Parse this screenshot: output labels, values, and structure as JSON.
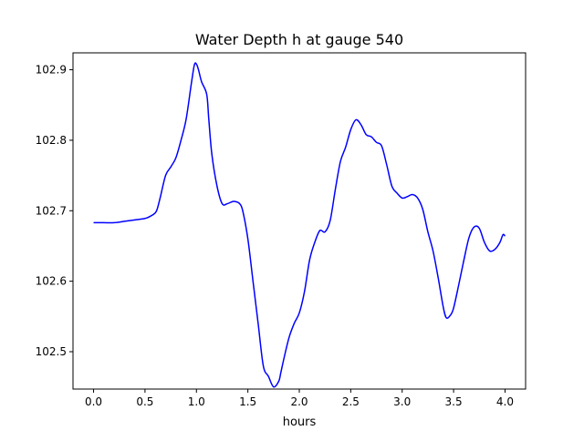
{
  "chart_data": {
    "type": "line",
    "title": "Water Depth h at gauge 540",
    "xlabel": "hours",
    "ylabel": "",
    "xlim": [
      -0.2,
      4.2
    ],
    "ylim": [
      102.447,
      102.924
    ],
    "xticks": [
      0.0,
      0.5,
      1.0,
      1.5,
      2.0,
      2.5,
      3.0,
      3.5,
      4.0
    ],
    "xtick_labels": [
      "0.0",
      "0.5",
      "1.0",
      "1.5",
      "2.0",
      "2.5",
      "3.0",
      "3.5",
      "4.0"
    ],
    "yticks": [
      102.5,
      102.6,
      102.7,
      102.8,
      102.9
    ],
    "ytick_labels": [
      "102.5",
      "102.6",
      "102.7",
      "102.8",
      "102.9"
    ],
    "grid": false,
    "legend": "none",
    "line_color": "#0000ff",
    "series": [
      {
        "x": [
          0.0,
          0.1,
          0.2,
          0.3,
          0.4,
          0.5,
          0.55,
          0.6,
          0.62,
          0.65,
          0.7,
          0.75,
          0.8,
          0.85,
          0.9,
          0.95,
          0.98,
          1.0,
          1.02,
          1.05,
          1.1,
          1.12,
          1.15,
          1.2,
          1.25,
          1.3,
          1.35,
          1.38,
          1.42,
          1.45,
          1.5,
          1.55,
          1.6,
          1.65,
          1.7,
          1.75,
          1.8,
          1.82,
          1.85,
          1.9,
          1.95,
          2.0,
          2.05,
          2.1,
          2.15,
          2.2,
          2.25,
          2.3,
          2.35,
          2.4,
          2.45,
          2.5,
          2.55,
          2.6,
          2.65,
          2.7,
          2.75,
          2.8,
          2.85,
          2.9,
          2.95,
          3.0,
          3.05,
          3.1,
          3.15,
          3.2,
          3.25,
          3.3,
          3.35,
          3.4,
          3.43,
          3.47,
          3.5,
          3.55,
          3.6,
          3.65,
          3.7,
          3.75,
          3.8,
          3.85,
          3.9,
          3.95,
          3.98,
          4.0
        ],
        "y": [
          102.683,
          102.683,
          102.683,
          102.685,
          102.687,
          102.689,
          102.692,
          102.697,
          102.703,
          102.72,
          102.75,
          102.762,
          102.775,
          102.8,
          102.83,
          102.88,
          102.907,
          102.908,
          102.9,
          102.883,
          102.865,
          102.83,
          102.78,
          102.735,
          102.71,
          102.71,
          102.713,
          102.713,
          102.71,
          102.7,
          102.66,
          102.6,
          102.54,
          102.48,
          102.465,
          102.45,
          102.458,
          102.47,
          102.49,
          102.52,
          102.54,
          102.555,
          102.585,
          102.63,
          102.655,
          102.672,
          102.67,
          102.686,
          102.73,
          102.77,
          102.79,
          102.815,
          102.829,
          102.822,
          102.808,
          102.805,
          102.797,
          102.792,
          102.765,
          102.735,
          102.725,
          102.718,
          102.72,
          102.723,
          102.718,
          102.702,
          102.67,
          102.643,
          102.605,
          102.563,
          102.548,
          102.552,
          102.562,
          102.595,
          102.63,
          102.662,
          102.677,
          102.675,
          102.655,
          102.643,
          102.645,
          102.655,
          102.666,
          102.664
        ]
      }
    ]
  }
}
